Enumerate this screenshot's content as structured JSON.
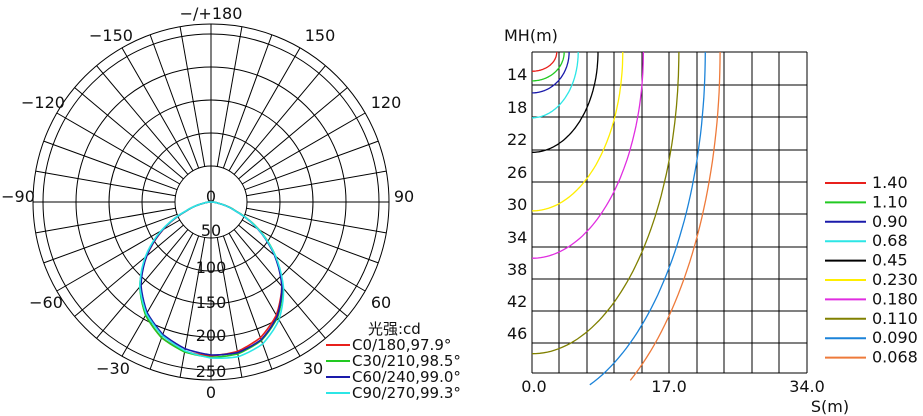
{
  "chart_data": [
    {
      "type": "polar",
      "angle_labels": [
        {
          "text": "−/+180",
          "deg": 180
        },
        {
          "text": "−150",
          "deg": -150
        },
        {
          "text": "150",
          "deg": 150
        },
        {
          "text": "−120",
          "deg": -120
        },
        {
          "text": "120",
          "deg": 120
        },
        {
          "text": "−90",
          "deg": -90
        },
        {
          "text": "90",
          "deg": 90
        },
        {
          "text": "−60",
          "deg": -60
        },
        {
          "text": "60",
          "deg": 60
        },
        {
          "text": "−30",
          "deg": -30
        },
        {
          "text": "30",
          "deg": 30
        },
        {
          "text": "0",
          "deg": 0
        }
      ],
      "radial_labels": [
        "0",
        "50",
        "100",
        "150",
        "200",
        "250"
      ],
      "radial_max": 250,
      "spoke_step_deg": 10,
      "unit_label": "光强:cd",
      "series": [
        {
          "name": "C0/180,97.9°",
          "color": "#e8201c"
        },
        {
          "name": "C30/210,98.5°",
          "color": "#22c922"
        },
        {
          "name": "C60/240,99.0°",
          "color": "#1a1aaa"
        },
        {
          "name": "C90/270,99.3°",
          "color": "#2ce6e6"
        }
      ],
      "intensity_profile": {
        "angle_deg": [
          0,
          10,
          20,
          30,
          40,
          50,
          60,
          70,
          80,
          90
        ],
        "cd": [
          233,
          230,
          219,
          198,
          167,
          127,
          84,
          40,
          12,
          0
        ]
      }
    },
    {
      "type": "contour",
      "ylabel": "MH(m)",
      "xlabel": "S(m)",
      "y_tick_labels": [
        "14",
        "18",
        "22",
        "26",
        "30",
        "34",
        "38",
        "42",
        "46"
      ],
      "y_range": [
        10,
        50
      ],
      "x_tick_labels": [
        "0.0",
        "17.0",
        "34.0"
      ],
      "x_range": [
        0,
        34
      ],
      "legend": [
        {
          "value": "1.40",
          "color": "#e8201c",
          "x_at_mh": 3.0,
          "mh": 12.4
        },
        {
          "value": "1.10",
          "color": "#22c922",
          "x_at_mh": 3.9,
          "mh": 13.6
        },
        {
          "value": "0.90",
          "color": "#1a1aaa",
          "x_at_mh": 4.5,
          "mh": 15.1
        },
        {
          "value": "0.68",
          "color": "#2ce6e6",
          "x_at_mh": 5.6,
          "mh": 18.2
        },
        {
          "value": "0.45",
          "color": "#000000",
          "x_at_mh": 8.0,
          "mh": 22.5
        },
        {
          "value": "0.230",
          "color": "#ffee00",
          "x_at_mh": 11.0,
          "mh": 29.8
        },
        {
          "value": "0.180",
          "color": "#e02de0",
          "x_at_mh": 13.5,
          "mh": 35.7
        },
        {
          "value": "0.110",
          "color": "#808000",
          "x_at_mh": 17.8,
          "mh": 47.6
        },
        {
          "value": "0.090",
          "color": "#1b83d9",
          "x_at_mh": 21.0,
          "mh": 54.0
        },
        {
          "value": "0.068",
          "color": "#ee7a3a",
          "x_at_mh": 22.8,
          "mh": 58.0
        }
      ]
    }
  ]
}
